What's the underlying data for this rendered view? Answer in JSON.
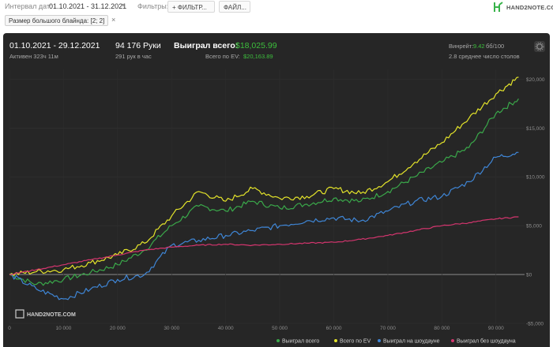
{
  "toolbar": {
    "date_label": "Интервал дат:",
    "date_value": "01.10.2021 - 31.12.2021",
    "filters_label": "Фильтры:",
    "filter_button": "+ ФИЛЬТР...",
    "file_button": "ФАЙЛ...",
    "logo_text": "HAND2NOTE.COM"
  },
  "tag": {
    "label": "Размер большого блайнда: [2; 2]",
    "close": "×"
  },
  "stats": {
    "date_range": "01.10.2021 - 29.12.2021",
    "active": "Активен 323ч 11м",
    "hands": "94 176 Руки",
    "hands_per_hour": "291 рук в час",
    "won_label": "Выиграл всего:",
    "won_value": "$18,025.99",
    "ev_label": "Всего по EV:",
    "ev_value": "$20,163.89",
    "winrate_label": "Винрейт:",
    "winrate_value": "9.42",
    "winrate_suffix": "бб/100",
    "tables": "2.8 среднее число столов"
  },
  "watermark": "HAND2NOTE.COM",
  "colors": {
    "green": "#3aa84a",
    "yellow": "#e4e42a",
    "blue": "#3f86d6",
    "pink": "#d4356e",
    "bg": "#262626"
  },
  "chart_data": {
    "type": "line",
    "xlim": [
      0,
      95000
    ],
    "ylim": [
      -5000,
      21000
    ],
    "x_ticks": [
      0,
      10000,
      20000,
      30000,
      40000,
      50000,
      60000,
      70000,
      80000,
      90000
    ],
    "x_tick_labels": [
      "0",
      "10 000",
      "20 000",
      "30 000",
      "40 000",
      "50 000",
      "60 000",
      "70 000",
      "80 000",
      "90 000"
    ],
    "y_ticks": [
      -5000,
      0,
      5000,
      10000,
      15000,
      20000
    ],
    "y_tick_labels": [
      "-$5,000",
      "$0",
      "$5,000",
      "$10,000",
      "$15,000",
      "$20,000"
    ],
    "series": [
      {
        "name": "Выиграл всего",
        "color": "#3aa84a",
        "x": [
          0,
          5000,
          10000,
          15000,
          20000,
          25000,
          30000,
          35000,
          40000,
          45000,
          50000,
          55000,
          60000,
          65000,
          70000,
          75000,
          80000,
          85000,
          90000,
          94176
        ],
        "values": [
          0,
          -1000,
          -500,
          200,
          1000,
          2500,
          5000,
          7000,
          6500,
          7500,
          6800,
          7200,
          7800,
          7500,
          8500,
          10000,
          11500,
          13000,
          16500,
          18000
        ]
      },
      {
        "name": "Всего по EV",
        "color": "#e4e42a",
        "x": [
          0,
          5000,
          10000,
          15000,
          20000,
          25000,
          30000,
          35000,
          40000,
          45000,
          50000,
          55000,
          60000,
          65000,
          70000,
          75000,
          80000,
          85000,
          90000,
          94176
        ],
        "values": [
          0,
          300,
          500,
          1200,
          2000,
          3200,
          6000,
          8500,
          7500,
          8800,
          7800,
          8000,
          8800,
          8300,
          9500,
          11500,
          13500,
          16000,
          18500,
          20200
        ]
      },
      {
        "name": "Выиграл на шоудауне",
        "color": "#3f86d6",
        "x": [
          0,
          5000,
          10000,
          15000,
          20000,
          25000,
          30000,
          35000,
          40000,
          45000,
          50000,
          55000,
          60000,
          65000,
          70000,
          75000,
          80000,
          85000,
          90000,
          94176
        ],
        "values": [
          0,
          -1500,
          -2500,
          -1500,
          -500,
          0,
          3000,
          3500,
          4000,
          4500,
          5000,
          5500,
          5800,
          5500,
          6500,
          7500,
          8000,
          9500,
          12000,
          12500
        ]
      },
      {
        "name": "Выиграл без шоудауна",
        "color": "#d4356e",
        "x": [
          0,
          5000,
          10000,
          15000,
          20000,
          25000,
          30000,
          35000,
          40000,
          45000,
          50000,
          55000,
          60000,
          65000,
          70000,
          75000,
          80000,
          85000,
          90000,
          94176
        ],
        "values": [
          0,
          500,
          1000,
          1500,
          2000,
          2500,
          2800,
          3000,
          3100,
          3000,
          3100,
          3200,
          3300,
          3600,
          4000,
          4500,
          5000,
          5300,
          5700,
          5900
        ]
      }
    ]
  }
}
